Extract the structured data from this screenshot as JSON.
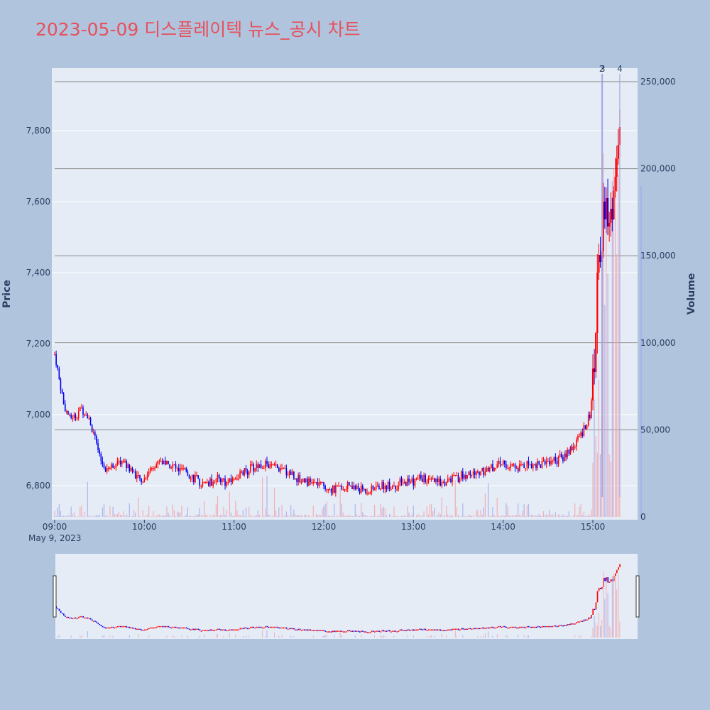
{
  "chart_data": {
    "type": "candlestick",
    "title": "2023-05-09 디스플레이텍 뉴스_공시 차트",
    "date_label": "May 9, 2023",
    "price_axis": {
      "title": "Price",
      "range": [
        6710,
        7960
      ],
      "ticks": [
        6800,
        7000,
        7200,
        7400,
        7600,
        7800
      ],
      "tick_labels": [
        "6,800",
        "7,000",
        "7,200",
        "7,400",
        "7,600",
        "7,800"
      ]
    },
    "volume_axis": {
      "title": "Volume",
      "range": [
        0,
        250000
      ],
      "ticks": [
        0,
        50000,
        100000,
        150000,
        200000,
        250000
      ],
      "tick_labels": [
        "0",
        "50,000",
        "100,000",
        "150,000",
        "200,000",
        "250,000"
      ]
    },
    "time_axis": {
      "range_minutes": [
        540,
        933
      ],
      "ticks": [
        540,
        600,
        660,
        720,
        780,
        840,
        900
      ],
      "tick_labels": [
        "09:00",
        "10:00",
        "11:00",
        "12:00",
        "13:00",
        "14:00",
        "15:00"
      ]
    },
    "annotations": [
      {
        "label": "2",
        "minute": 906
      },
      {
        "label": "3",
        "minute": 906.5
      },
      {
        "label": "4",
        "minute": 918
      }
    ],
    "price_path": [
      [
        540,
        7170
      ],
      [
        543,
        7100
      ],
      [
        546,
        7030
      ],
      [
        550,
        6990
      ],
      [
        554,
        7000
      ],
      [
        558,
        7020
      ],
      [
        562,
        7000
      ],
      [
        566,
        6950
      ],
      [
        570,
        6880
      ],
      [
        574,
        6850
      ],
      [
        580,
        6860
      ],
      [
        586,
        6870
      ],
      [
        592,
        6840
      ],
      [
        598,
        6810
      ],
      [
        604,
        6850
      ],
      [
        610,
        6870
      ],
      [
        616,
        6860
      ],
      [
        622,
        6850
      ],
      [
        628,
        6840
      ],
      [
        634,
        6820
      ],
      [
        640,
        6800
      ],
      [
        648,
        6820
      ],
      [
        656,
        6810
      ],
      [
        664,
        6830
      ],
      [
        672,
        6850
      ],
      [
        680,
        6860
      ],
      [
        688,
        6850
      ],
      [
        696,
        6840
      ],
      [
        704,
        6820
      ],
      [
        712,
        6810
      ],
      [
        720,
        6800
      ],
      [
        728,
        6790
      ],
      [
        736,
        6800
      ],
      [
        744,
        6790
      ],
      [
        752,
        6790
      ],
      [
        760,
        6800
      ],
      [
        768,
        6800
      ],
      [
        776,
        6810
      ],
      [
        784,
        6820
      ],
      [
        792,
        6810
      ],
      [
        800,
        6810
      ],
      [
        808,
        6820
      ],
      [
        816,
        6830
      ],
      [
        824,
        6840
      ],
      [
        832,
        6850
      ],
      [
        840,
        6860
      ],
      [
        848,
        6850
      ],
      [
        856,
        6860
      ],
      [
        864,
        6860
      ],
      [
        872,
        6870
      ],
      [
        880,
        6880
      ],
      [
        886,
        6910
      ],
      [
        890,
        6930
      ],
      [
        894,
        6960
      ],
      [
        898,
        7000
      ],
      [
        900,
        7080
      ],
      [
        902,
        7200
      ],
      [
        903,
        7400
      ],
      [
        905,
        7470
      ],
      [
        907,
        7550
      ],
      [
        909,
        7620
      ],
      [
        911,
        7530
      ],
      [
        913,
        7600
      ],
      [
        915,
        7660
      ],
      [
        917,
        7740
      ],
      [
        918,
        7850
      ]
    ],
    "last_volume_bar": 190000
  }
}
